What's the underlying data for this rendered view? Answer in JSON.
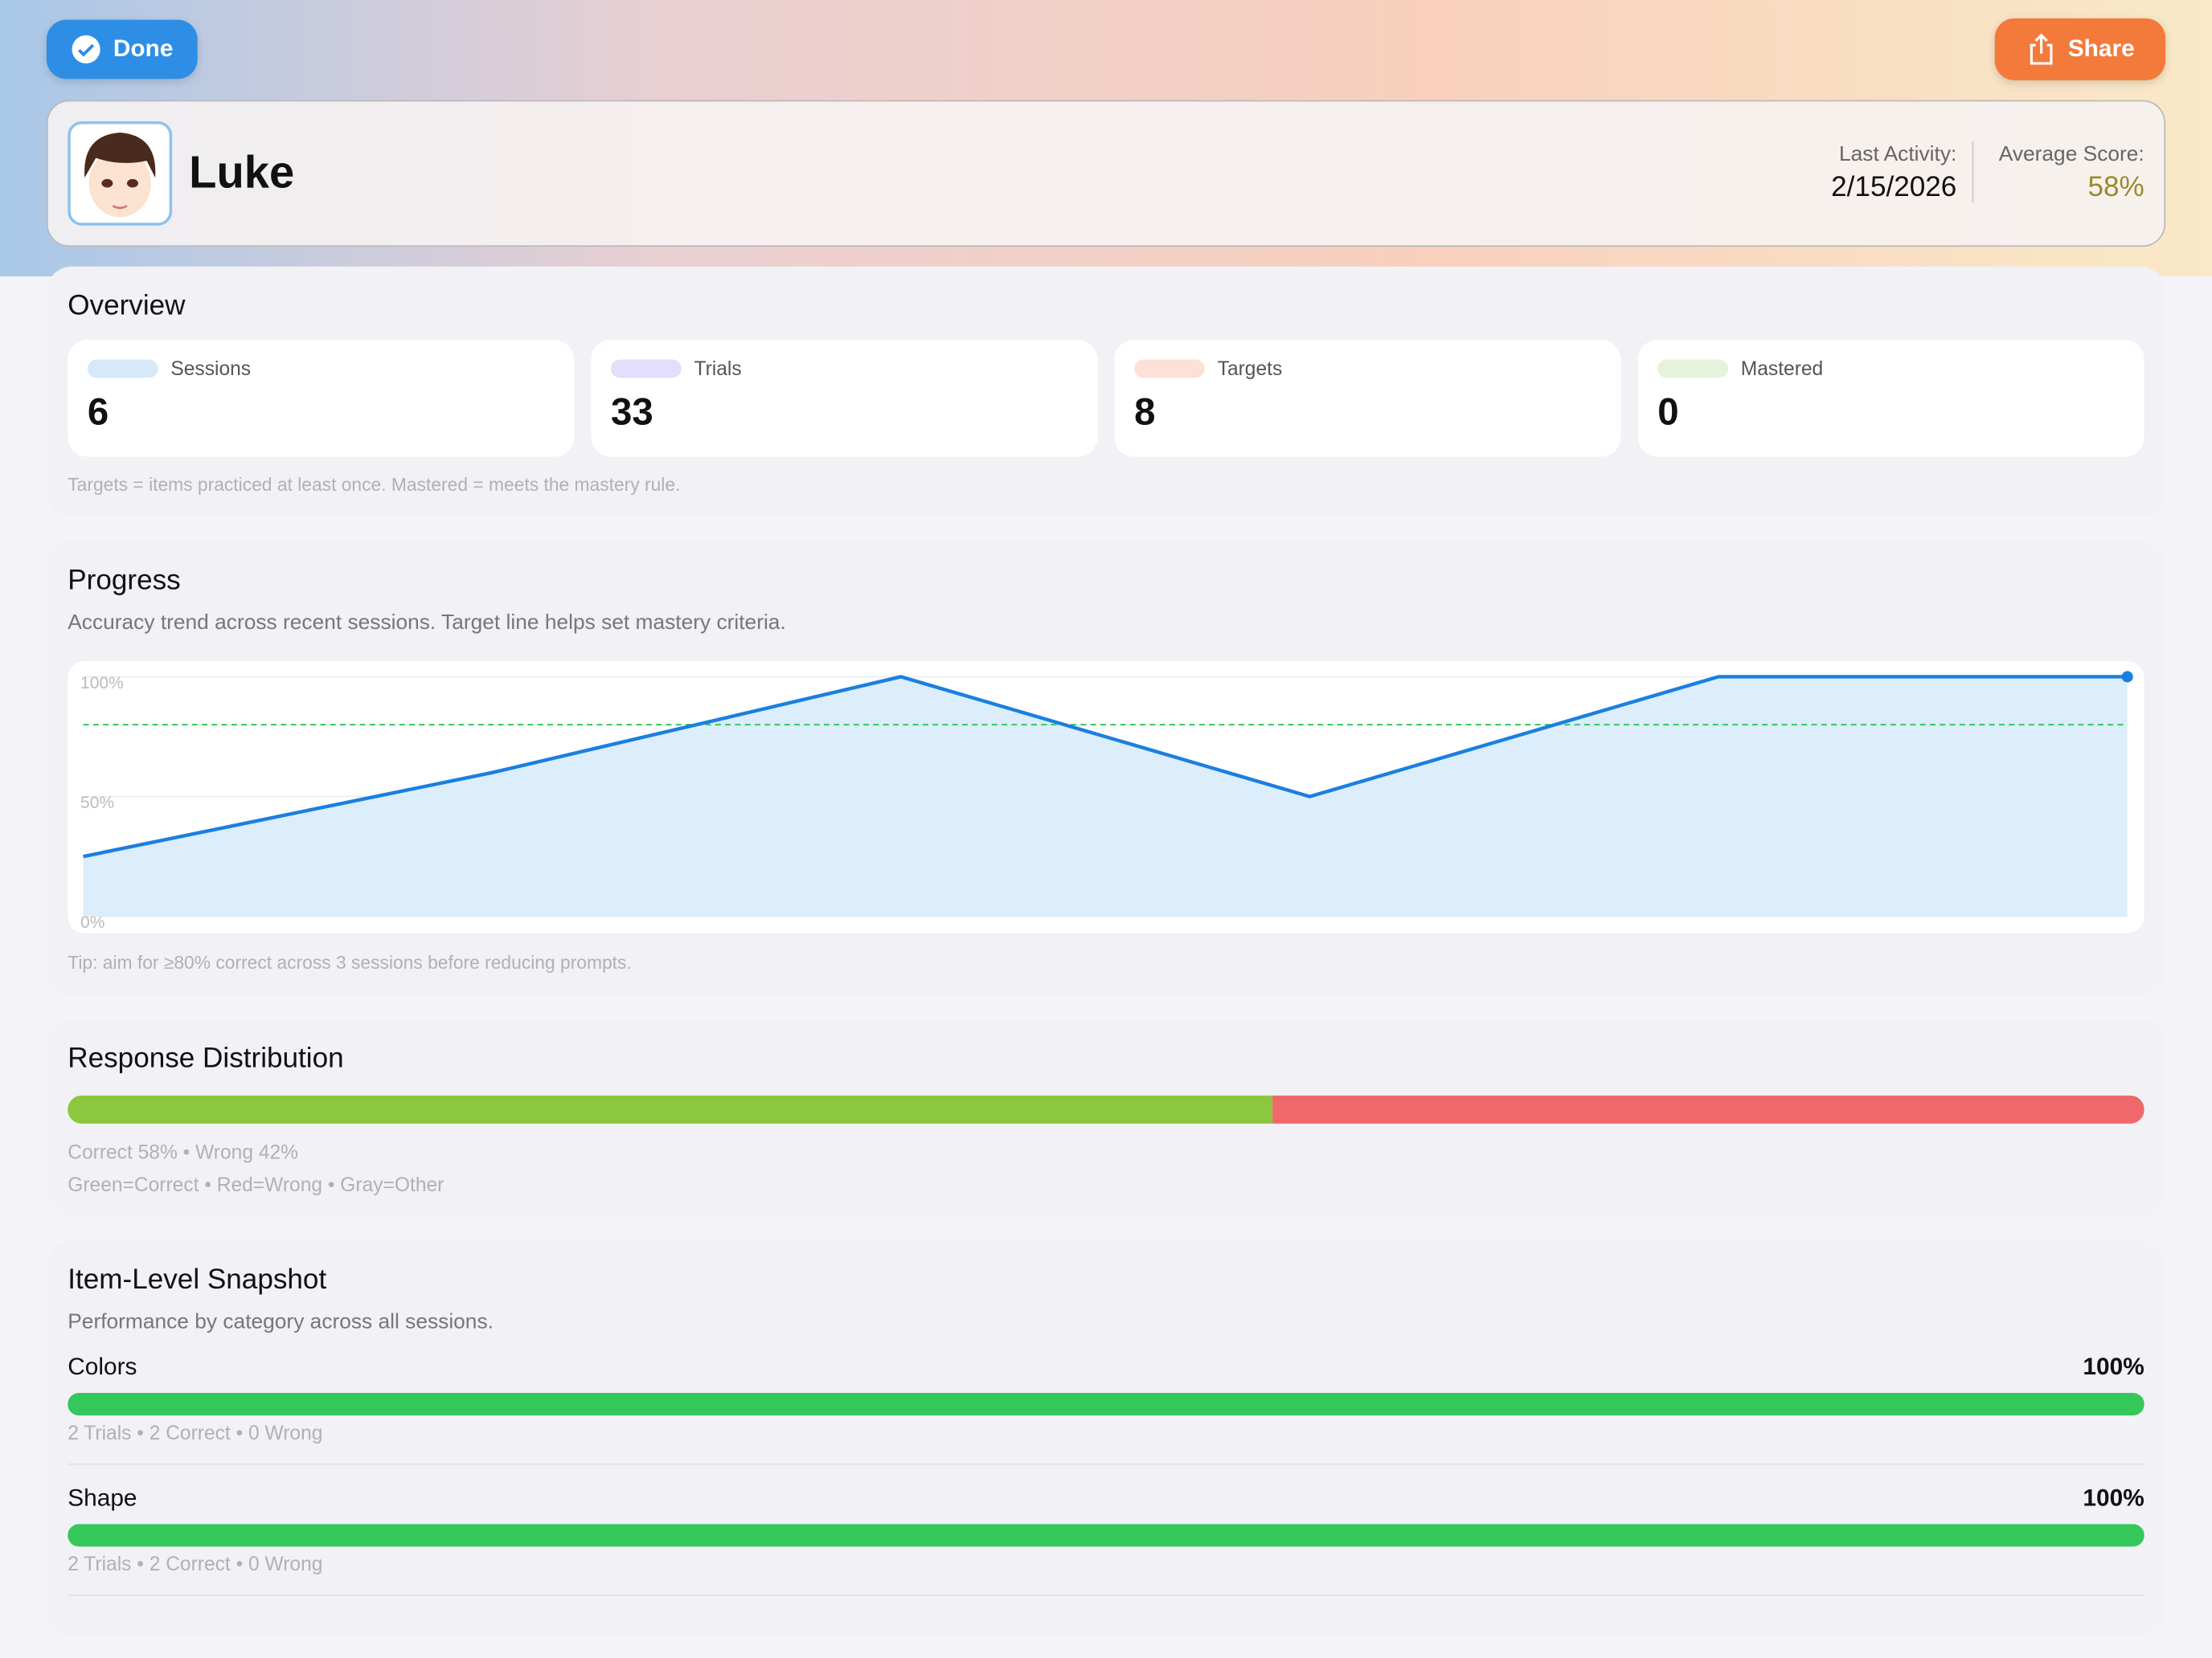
{
  "header": {
    "done": "Done",
    "share": "Share",
    "name": "Luke",
    "last_activity_label": "Last Activity:",
    "last_activity": "2/15/2026",
    "average_score_label": "Average Score:",
    "average_score": "58%"
  },
  "overview": {
    "title": "Overview",
    "stats": [
      {
        "label": "Sessions",
        "value": 6,
        "color": "#d6e9fb"
      },
      {
        "label": "Trials",
        "value": 33,
        "color": "#e3defb"
      },
      {
        "label": "Targets",
        "value": 8,
        "color": "#fde0d6"
      },
      {
        "label": "Mastered",
        "value": 0,
        "color": "#e4f3da"
      }
    ],
    "note": "Targets = items practiced at least once. Mastered = meets the mastery rule."
  },
  "progress": {
    "title": "Progress",
    "subtitle": "Accuracy trend across recent sessions. Target line helps set mastery criteria.",
    "tip": "Tip: aim for ≥80% correct across 3 sessions before reducing prompts."
  },
  "chart_data": {
    "type": "line",
    "values": [
      25,
      60,
      100,
      50,
      100,
      100
    ],
    "color": "#1a7fe0",
    "area_color": "#dcedfb",
    "ylim": [
      0,
      100
    ],
    "yticks": [
      {
        "value": 0,
        "label": "0%"
      },
      {
        "value": 50,
        "label": "50%"
      },
      {
        "value": 100,
        "label": "100%"
      }
    ],
    "grid": true,
    "target": 80,
    "target_color": "#34c759"
  },
  "distribution": {
    "title": "Response Distribution",
    "segments": [
      {
        "value": 58,
        "color": "#8dc63f"
      },
      {
        "value": 42,
        "color": "#f0696a"
      }
    ],
    "summary": "Correct 58% • Wrong 42%",
    "legend": "Green=Correct • Red=Wrong • Gray=Other"
  },
  "items": {
    "title": "Item-Level Snapshot",
    "subtitle": "Performance by category across all sessions.",
    "rows": [
      {
        "name": "Colors",
        "value": 100,
        "value_label": "100%",
        "detail": "2 Trials • 2 Correct • 0 Wrong",
        "color": "#34c759"
      },
      {
        "name": "Shape",
        "value": 100,
        "value_label": "100%",
        "detail": "2 Trials • 2 Correct • 0 Wrong",
        "color": "#34c759"
      }
    ]
  }
}
